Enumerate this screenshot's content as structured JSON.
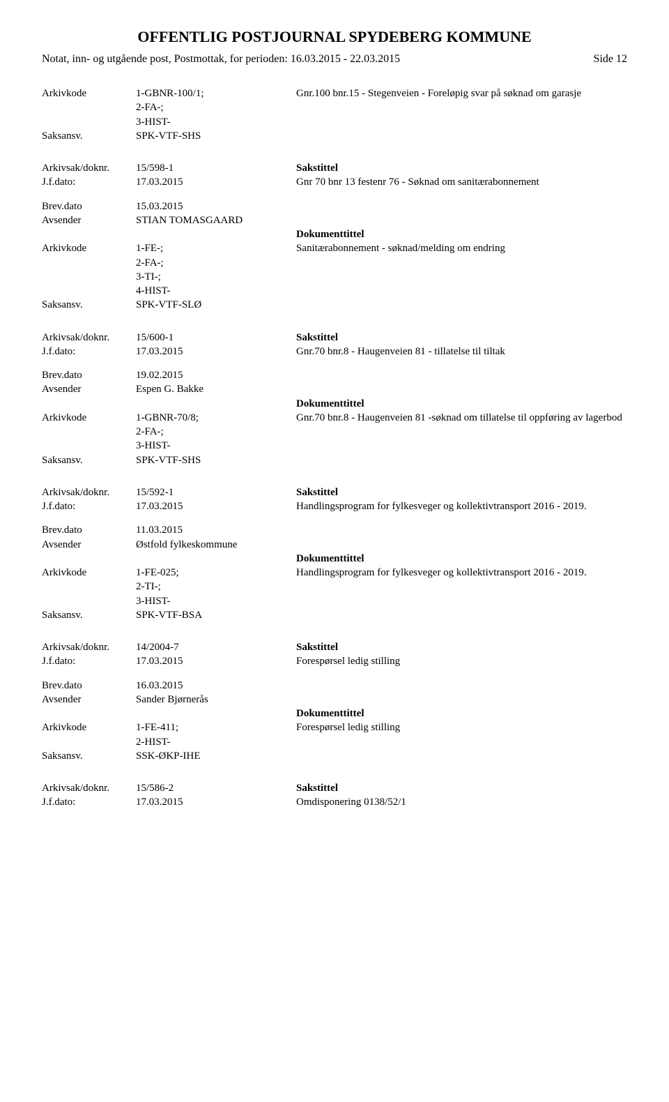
{
  "header": {
    "title": "OFFENTLIG POSTJOURNAL SPYDEBERG KOMMUNE",
    "subtitle": "Notat, inn- og utgående post, Postmottak, for perioden: 16.03.2015 - 22.03.2015",
    "page": "Side 12"
  },
  "labels": {
    "arkivkode": "Arkivkode",
    "saksansv": "Saksansv.",
    "arkivsak": "Arkivsak/doknr.",
    "jfdato": "J.f.dato:",
    "brevdato": "Brev.dato",
    "avsender": "Avsender",
    "sakstittel": "Sakstittel",
    "dokumenttittel": "Dokumenttittel"
  },
  "blocks": [
    {
      "arkivkode": "1-GBNR-100/1;\n2-FA-;\n3-HIST-",
      "saksansv": "SPK-VTF-SHS",
      "right": "Gnr.100 bnr.15 - Stegenveien - Foreløpig svar på søknad om garasje"
    },
    {
      "section": true,
      "arkivsak": "15/598-1",
      "jfdato": "17.03.2015",
      "sakstittel": "Gnr 70 bnr 13 festenr 76 - Søknad om sanitærabonnement",
      "brevdato": "15.03.2015",
      "avsender": "STIAN TOMASGAARD",
      "dokumenttittel": "Sanitærabonnement - søknad/melding om endring",
      "arkivkode": "1-FE-;\n2-FA-;\n3-TI-;\n4-HIST-",
      "saksansv": "SPK-VTF-SLØ"
    },
    {
      "section": true,
      "arkivsak": "15/600-1",
      "jfdato": "17.03.2015",
      "sakstittel": "Gnr.70 bnr.8 - Haugenveien 81 - tillatelse til tiltak",
      "brevdato": "19.02.2015",
      "avsender": "Espen G. Bakke",
      "dokumenttittel": "Gnr.70 bnr.8 - Haugenveien 81 -søknad om tillatelse til oppføring av lagerbod",
      "arkivkode": "1-GBNR-70/8;\n2-FA-;\n3-HIST-",
      "saksansv": "SPK-VTF-SHS"
    },
    {
      "section": true,
      "arkivsak": "15/592-1",
      "jfdato": "17.03.2015",
      "sakstittel": "Handlingsprogram for fylkesveger og kollektivtransport 2016 - 2019.",
      "brevdato": "11.03.2015",
      "avsender": "Østfold fylkeskommune",
      "dokumenttittel": "Handlingsprogram for fylkesveger og kollektivtransport 2016 - 2019.",
      "arkivkode": "1-FE-025;\n2-TI-;\n3-HIST-",
      "saksansv": "SPK-VTF-BSA"
    },
    {
      "section": true,
      "arkivsak": "14/2004-7",
      "jfdato": "17.03.2015",
      "sakstittel": "Forespørsel ledig stilling",
      "brevdato": "16.03.2015",
      "avsender": "Sander Bjørnerås",
      "dokumenttittel": "Forespørsel ledig stilling",
      "arkivkode": "1-FE-411;\n2-HIST-",
      "saksansv": "SSK-ØKP-IHE"
    },
    {
      "section": true,
      "arkivsak": "15/586-2",
      "jfdato": "17.03.2015",
      "sakstittel": "Omdisponering 0138/52/1"
    }
  ]
}
